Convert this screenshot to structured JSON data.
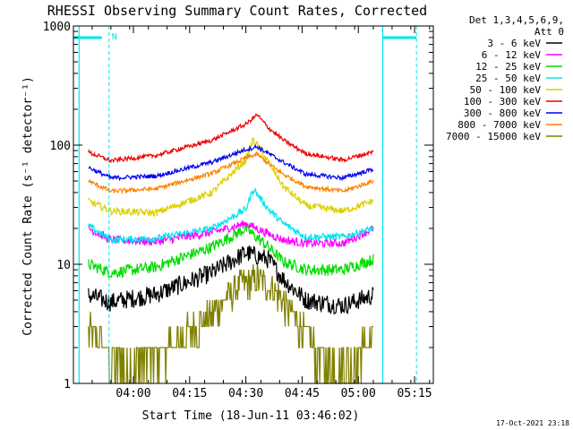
{
  "chart_data": {
    "type": "line",
    "title": "RHESSI Observing Summary Count Rates, Corrected",
    "xlabel": "Start Time (18-Jun-11 03:46:02)",
    "ylabel": "Corrected Count Rate (s⁻¹ detector⁻¹)",
    "yscale": "log",
    "ylim": [
      1,
      1000
    ],
    "xlim_minutes_after_0346": [
      -2,
      94
    ],
    "x_ticks": [
      {
        "label": "04:00",
        "min": 14
      },
      {
        "label": "04:15",
        "min": 29
      },
      {
        "label": "04:30",
        "min": 44
      },
      {
        "label": "04:45",
        "min": 59
      },
      {
        "label": "05:00",
        "min": 74
      },
      {
        "label": "05:15",
        "min": 89
      }
    ],
    "y_ticks": [
      {
        "label": "1",
        "v": 1
      },
      {
        "label": "10",
        "v": 10
      },
      {
        "label": "100",
        "v": 100
      },
      {
        "label": "1000",
        "v": 1000
      }
    ],
    "legend": {
      "header1": "Det 1,3,4,5,6,9,",
      "header2": "Att 0",
      "position": "right"
    },
    "markers": {
      "solid_lines_min": [
        -0.5,
        80.5
      ],
      "dashed_lines_min": [
        7.5,
        89.5
      ],
      "N_label": "N"
    },
    "series": [
      {
        "name": "3 - 6 keV",
        "color": "#000000",
        "x": [
          2,
          8,
          20,
          35,
          44,
          50,
          54,
          60,
          70,
          78
        ],
        "y": [
          5.5,
          4.8,
          5.6,
          8.5,
          12.5,
          11,
          7.5,
          5,
          4.5,
          5.5
        ],
        "jitter": 0.08
      },
      {
        "name": "6 - 12 keV",
        "color": "#ff00ff",
        "x": [
          2,
          8,
          20,
          35,
          44,
          50,
          54,
          60,
          70,
          78
        ],
        "y": [
          20,
          16,
          15.5,
          18.5,
          22,
          18,
          16,
          15,
          15,
          20
        ],
        "jitter": 0.035
      },
      {
        "name": "12 - 25 keV",
        "color": "#00dd00",
        "x": [
          2,
          8,
          20,
          35,
          44,
          50,
          54,
          60,
          70,
          78
        ],
        "y": [
          10,
          8.5,
          9.5,
          14,
          20,
          14,
          10.5,
          9,
          9,
          11
        ],
        "jitter": 0.05
      },
      {
        "name": "25 - 50 keV",
        "color": "#00e5ee",
        "x": [
          2,
          8,
          20,
          35,
          44,
          46,
          50,
          54,
          60,
          70,
          78
        ],
        "y": [
          21,
          16,
          16.5,
          20,
          29,
          43,
          29,
          22,
          17,
          17,
          20
        ],
        "jitter": 0.03
      },
      {
        "name": "50 - 100 keV",
        "color": "#dcd000",
        "x": [
          2,
          8,
          20,
          35,
          44,
          46,
          50,
          54,
          60,
          70,
          78
        ],
        "y": [
          34,
          28,
          27,
          40,
          75,
          112,
          72,
          45,
          31,
          28,
          34
        ],
        "jitter": 0.03
      },
      {
        "name": "100 - 300 keV",
        "color": "#ee0000",
        "x": [
          2,
          8,
          20,
          35,
          44,
          47,
          50,
          54,
          60,
          70,
          78
        ],
        "y": [
          87,
          74,
          82,
          110,
          150,
          180,
          140,
          110,
          85,
          75,
          88
        ],
        "jitter": 0.018
      },
      {
        "name": "300 - 800 keV",
        "color": "#0000ee",
        "x": [
          2,
          8,
          20,
          35,
          44,
          47,
          50,
          54,
          60,
          70,
          78
        ],
        "y": [
          65,
          53,
          55,
          72,
          92,
          97,
          85,
          72,
          57,
          53,
          63
        ],
        "jitter": 0.018
      },
      {
        "name": "800 - 7000 keV",
        "color": "#ff7f00",
        "x": [
          2,
          8,
          20,
          35,
          44,
          47,
          50,
          54,
          60,
          70,
          78
        ],
        "y": [
          50,
          41,
          43,
          58,
          78,
          84,
          70,
          57,
          45,
          41,
          50
        ],
        "jitter": 0.018
      },
      {
        "name": "7000 - 15000 keV",
        "color": "#808000",
        "x": [
          2,
          8,
          14,
          22,
          30,
          36,
          42,
          47,
          52,
          58,
          62,
          66,
          72,
          78
        ],
        "y": [
          2.8,
          1.6,
          1.4,
          1.9,
          2.8,
          4.2,
          6.5,
          7.5,
          6,
          3.2,
          2,
          1.4,
          1.5,
          2.5
        ],
        "jitter": 0.14,
        "step": true
      }
    ],
    "footer_date": "17-Oct-2021 23:18"
  }
}
